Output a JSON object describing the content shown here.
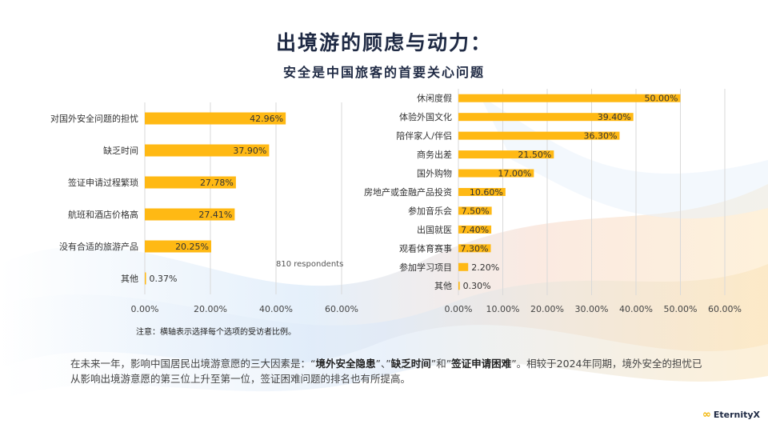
{
  "title": "出境游的顾虑与动力：",
  "subtitle": "安全是中国旅客的首要关心问题",
  "respondents": "810 respondents",
  "note": "注意：横轴表示选择每个选项的受访者比例。",
  "summary": {
    "p1": "在未来一年，影响中国居民出境游意愿的三大因素是：“",
    "b1": "境外安全隐患",
    "p2": "”、”",
    "b2": "缺乏时间",
    "p3": "”和”",
    "b3": "签证申请困难",
    "p4": "”。相较于2024年同期，境外安全的担忧已从影响出境游意愿的第三位上升至第一位，签证困难问题的排名也有所提高。"
  },
  "logo": {
    "text": "EternityX",
    "icon": "infinity-logo-icon"
  },
  "colors": {
    "bar": "#FFB914",
    "title": "#1f2a44",
    "grid": "#d9d9d9"
  },
  "chart_data": [
    {
      "type": "bar",
      "orientation": "horizontal",
      "categories": [
        "对国外安全问题的担忧",
        "缺乏时间",
        "签证申请过程繁琐",
        "航班和酒店价格高",
        "没有合适的旅游产品",
        "其他"
      ],
      "values": [
        42.96,
        37.9,
        27.78,
        27.41,
        20.25,
        0.37
      ],
      "value_labels": [
        "42.96%",
        "37.90%",
        "27.78%",
        "27.41%",
        "20.25%",
        "0.37%"
      ],
      "xlim": [
        0,
        60
      ],
      "x_ticks": [
        "0.00%",
        "20.00%",
        "40.00%",
        "60.00%"
      ],
      "grid": true
    },
    {
      "type": "bar",
      "orientation": "horizontal",
      "categories": [
        "休闲度假",
        "体验外国文化",
        "陪伴家人/伴侣",
        "商务出差",
        "国外购物",
        "房地产或金融产品投资",
        "参加音乐会",
        "出国就医",
        "观看体育赛事",
        "参加学习项目",
        "其他"
      ],
      "values": [
        50.0,
        39.4,
        36.3,
        21.5,
        17.0,
        10.6,
        7.5,
        7.4,
        7.3,
        2.2,
        0.3
      ],
      "value_labels": [
        "50.00%",
        "39.40%",
        "36.30%",
        "21.50%",
        "17.00%",
        "10.60%",
        "7.50%",
        "7.40%",
        "7.30%",
        "2.20%",
        "0.30%"
      ],
      "xlim": [
        0,
        60
      ],
      "x_ticks": [
        "0.00%",
        "10.00%",
        "20.00%",
        "30.00%",
        "40.00%",
        "50.00%",
        "60.00%"
      ],
      "grid": true
    }
  ]
}
